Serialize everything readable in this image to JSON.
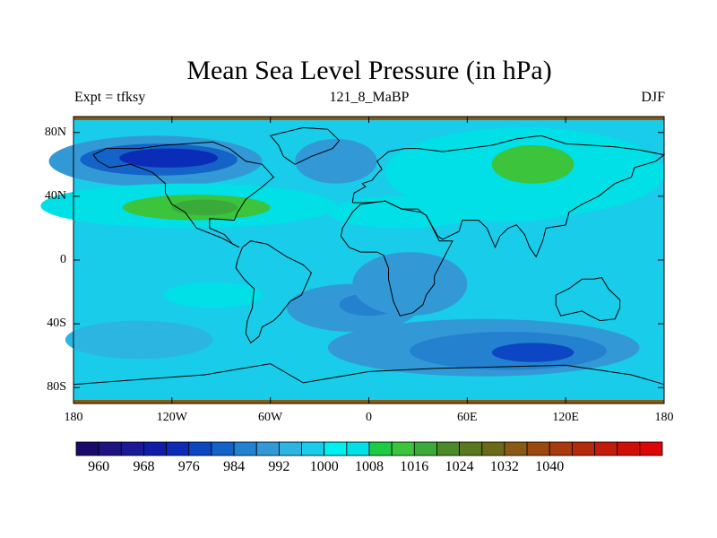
{
  "chart_data": {
    "type": "heatmap",
    "title": "Mean Sea Level Pressure (in hPa)",
    "left_string": "Expt = tfksy",
    "center_string": "121_8_MaBP",
    "right_string": "DJF",
    "units": "hPa",
    "xlim": [
      -180,
      180
    ],
    "ylim": [
      -90,
      90
    ],
    "x_ticks": [
      {
        "value": -180,
        "label": "180"
      },
      {
        "value": -120,
        "label": "120W"
      },
      {
        "value": -60,
        "label": "60W"
      },
      {
        "value": 0,
        "label": "0"
      },
      {
        "value": 60,
        "label": "60E"
      },
      {
        "value": 120,
        "label": "120E"
      },
      {
        "value": 180,
        "label": "180"
      }
    ],
    "y_ticks": [
      {
        "value": 80,
        "label": "80N"
      },
      {
        "value": 40,
        "label": "40N"
      },
      {
        "value": 0,
        "label": "0"
      },
      {
        "value": -40,
        "label": "40S"
      },
      {
        "value": -80,
        "label": "80S"
      }
    ],
    "background_level": 996,
    "pressure_regions": [
      {
        "name": "north-pacific-low",
        "lon": -130,
        "lat": 62,
        "rlon": 65,
        "rlat": 16,
        "value": 988
      },
      {
        "name": "north-pacific-low-core",
        "lon": -128,
        "lat": 63,
        "rlon": 48,
        "rlat": 10,
        "value": 980
      },
      {
        "name": "north-pacific-low-center",
        "lon": -122,
        "lat": 64,
        "rlon": 30,
        "rlat": 6,
        "value": 974
      },
      {
        "name": "north-atlantic-low",
        "lon": -20,
        "lat": 62,
        "rlon": 25,
        "rlat": 14,
        "value": 990
      },
      {
        "name": "subtropical-high-ridge",
        "lon": -110,
        "lat": 34,
        "rlon": 90,
        "rlat": 14,
        "value": 1004
      },
      {
        "name": "subtropical-high-core",
        "lon": -105,
        "lat": 33,
        "rlon": 45,
        "rlat": 8,
        "value": 1012
      },
      {
        "name": "subtropical-high-center",
        "lon": -100,
        "lat": 33,
        "rlon": 20,
        "rlat": 5,
        "value": 1016
      },
      {
        "name": "atlantic-high",
        "lon": 20,
        "lat": 30,
        "rlon": 45,
        "rlat": 10,
        "value": 1004
      },
      {
        "name": "siberian-high",
        "lon": 95,
        "lat": 55,
        "rlon": 85,
        "rlat": 28,
        "value": 1004
      },
      {
        "name": "siberian-high-core",
        "lon": 100,
        "lat": 60,
        "rlon": 25,
        "rlat": 12,
        "value": 1012
      },
      {
        "name": "asia-high-south",
        "lon": 85,
        "lat": 32,
        "rlon": 40,
        "rlat": 8,
        "value": 1004
      },
      {
        "name": "south-pacific-high",
        "lon": -95,
        "lat": -22,
        "rlon": 30,
        "rlat": 8,
        "value": 1004
      },
      {
        "name": "south-america-low",
        "lon": -10,
        "lat": -30,
        "rlon": 40,
        "rlat": 15,
        "value": 990
      },
      {
        "name": "south-america-low-core",
        "lon": 0,
        "lat": -28,
        "rlon": 18,
        "rlat": 7,
        "value": 984
      },
      {
        "name": "africa-low",
        "lon": 25,
        "lat": -15,
        "rlon": 35,
        "rlat": 20,
        "value": 990
      },
      {
        "name": "southern-ocean-low",
        "lon": 70,
        "lat": -55,
        "rlon": 95,
        "rlat": 18,
        "value": 990
      },
      {
        "name": "southern-ocean-low-core",
        "lon": 85,
        "lat": -57,
        "rlon": 60,
        "rlat": 12,
        "value": 984
      },
      {
        "name": "southern-ocean-low-center",
        "lon": 100,
        "lat": -58,
        "rlon": 25,
        "rlat": 6,
        "value": 976
      },
      {
        "name": "southern-pacific-low",
        "lon": -140,
        "lat": -50,
        "rlon": 45,
        "rlat": 12,
        "value": 994
      }
    ],
    "colorbar": {
      "colors": [
        "#1a0a6b",
        "#1f1380",
        "#1a1a96",
        "#0e1ea8",
        "#0a2cb6",
        "#0c46c2",
        "#1363c9",
        "#2481cf",
        "#3399d6",
        "#2bb5e0",
        "#19cdea",
        "#00f0f0",
        "#00e0e6",
        "#1ecb45",
        "#3cc43c",
        "#3aab3a",
        "#4a8a2a",
        "#5a7820",
        "#6b6a1a",
        "#8a5a14",
        "#9a4810",
        "#a83a0c",
        "#b52a0a",
        "#c41c0a",
        "#d00e08",
        "#dc0606"
      ],
      "labels": [
        {
          "value": 960,
          "label": "960"
        },
        {
          "value": 968,
          "label": "968"
        },
        {
          "value": 976,
          "label": "976"
        },
        {
          "value": 984,
          "label": "984"
        },
        {
          "value": 992,
          "label": "992"
        },
        {
          "value": 1000,
          "label": "1000"
        },
        {
          "value": 1008,
          "label": "1008"
        },
        {
          "value": 1016,
          "label": "1016"
        },
        {
          "value": 1024,
          "label": "1024"
        },
        {
          "value": 1032,
          "label": "1032"
        },
        {
          "value": 1040,
          "label": "1040"
        }
      ],
      "min": 956,
      "step": 4
    },
    "grid": false
  }
}
